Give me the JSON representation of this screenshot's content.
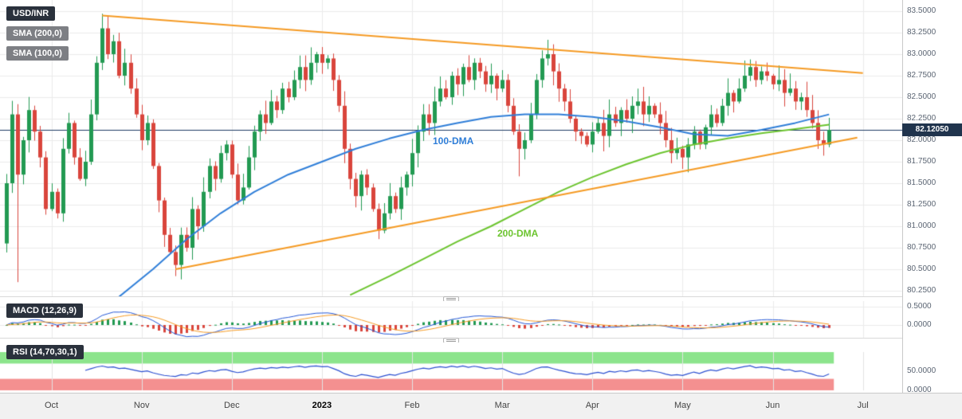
{
  "header": {
    "symbol": "USD/INR",
    "sma200_label": "SMA (200,0)",
    "sma100_label": "SMA (100,0)"
  },
  "overlays": {
    "dma100_label": "100-DMA",
    "dma200_label": "200-DMA",
    "price_tag": "82.12050"
  },
  "indicators": {
    "macd_label": "MACD (12,26,9)",
    "rsi_label": "RSI (14,70,30,1)"
  },
  "axes": {
    "price_ticks": [
      "83.5000",
      "83.2500",
      "83.0000",
      "82.7500",
      "82.5000",
      "82.2500",
      "82.0000",
      "81.7500",
      "81.5000",
      "81.2500",
      "81.0000",
      "80.7500",
      "80.5000",
      "80.2500"
    ],
    "macd_ticks": [
      "0.5000",
      "0.0000"
    ],
    "rsi_ticks": [
      "50.0000",
      "0.0000"
    ]
  },
  "chart_data": {
    "type": "candlestick",
    "symbol": "USD/INR",
    "price_axis": {
      "min": 80.19,
      "max": 83.63,
      "tick_step": 0.25
    },
    "x_axis": {
      "months": [
        {
          "label": "Oct",
          "i": 8
        },
        {
          "label": "Nov",
          "i": 24
        },
        {
          "label": "Dec",
          "i": 40
        },
        {
          "label": "2023",
          "i": 56
        },
        {
          "label": "Feb",
          "i": 72
        },
        {
          "label": "Mar",
          "i": 88
        },
        {
          "label": "Apr",
          "i": 104
        },
        {
          "label": "May",
          "i": 120
        },
        {
          "label": "Jun",
          "i": 136
        },
        {
          "label": "Jul",
          "i": 152
        }
      ]
    },
    "open_first": 80.8,
    "closes": [
      81.5,
      82.3,
      81.6,
      82.0,
      82.35,
      82.1,
      81.8,
      81.2,
      81.4,
      81.15,
      81.9,
      82.2,
      81.8,
      81.55,
      81.75,
      82.3,
      82.9,
      83.3,
      83.0,
      83.15,
      82.75,
      82.9,
      82.6,
      82.3,
      82.0,
      82.2,
      81.7,
      81.3,
      80.9,
      80.7,
      80.55,
      80.9,
      80.75,
      81.2,
      81.0,
      81.4,
      81.7,
      81.55,
      81.85,
      81.95,
      81.6,
      81.3,
      81.45,
      81.8,
      82.1,
      82.3,
      82.2,
      82.45,
      82.35,
      82.6,
      82.5,
      82.7,
      82.85,
      82.7,
      82.9,
      83.0,
      82.9,
      82.95,
      82.7,
      82.4,
      81.9,
      81.55,
      81.35,
      81.6,
      81.45,
      81.2,
      80.95,
      81.15,
      81.35,
      81.2,
      81.45,
      81.6,
      81.85,
      82.1,
      82.3,
      82.2,
      82.45,
      82.6,
      82.5,
      82.75,
      82.65,
      82.85,
      82.7,
      82.9,
      82.8,
      82.65,
      82.75,
      82.6,
      82.7,
      82.4,
      82.1,
      81.9,
      82.0,
      82.3,
      82.7,
      82.95,
      83.0,
      82.8,
      82.6,
      82.45,
      82.25,
      82.1,
      82.05,
      81.95,
      82.1,
      82.2,
      82.05,
      82.3,
      82.2,
      82.35,
      82.25,
      82.4,
      82.45,
      82.3,
      82.4,
      82.3,
      82.2,
      82.0,
      81.85,
      81.9,
      81.8,
      81.95,
      82.1,
      81.95,
      82.15,
      82.3,
      82.2,
      82.4,
      82.55,
      82.45,
      82.6,
      82.75,
      82.85,
      82.7,
      82.8,
      82.75,
      82.65,
      82.7,
      82.55,
      82.6,
      82.45,
      82.5,
      82.35,
      82.2,
      82.0,
      81.95,
      82.12
    ],
    "wick_overrides": {
      "2": {
        "low": 80.35
      },
      "17": {
        "high": 83.47
      },
      "30": {
        "low": 80.42
      },
      "66": {
        "low": 80.85
      },
      "91": {
        "low": 81.58
      },
      "145": {
        "low": 81.82
      }
    },
    "sma100": [
      [
        20,
        80.18
      ],
      [
        26,
        80.5
      ],
      [
        32,
        80.85
      ],
      [
        38,
        81.15
      ],
      [
        44,
        81.4
      ],
      [
        50,
        81.6
      ],
      [
        56,
        81.75
      ],
      [
        62,
        81.9
      ],
      [
        68,
        82.02
      ],
      [
        74,
        82.12
      ],
      [
        80,
        82.2
      ],
      [
        86,
        82.27
      ],
      [
        92,
        82.3
      ],
      [
        98,
        82.3
      ],
      [
        104,
        82.27
      ],
      [
        110,
        82.22
      ],
      [
        116,
        82.15
      ],
      [
        122,
        82.07
      ],
      [
        128,
        82.05
      ],
      [
        134,
        82.12
      ],
      [
        140,
        82.2
      ],
      [
        146,
        82.3
      ]
    ],
    "sma200": [
      [
        61,
        80.2
      ],
      [
        68,
        80.42
      ],
      [
        74,
        80.62
      ],
      [
        80,
        80.82
      ],
      [
        86,
        81.0
      ],
      [
        92,
        81.2
      ],
      [
        98,
        81.4
      ],
      [
        104,
        81.57
      ],
      [
        110,
        81.72
      ],
      [
        116,
        81.85
      ],
      [
        122,
        81.95
      ],
      [
        128,
        82.02
      ],
      [
        134,
        82.08
      ],
      [
        140,
        82.13
      ],
      [
        146,
        82.18
      ]
    ],
    "trendline_upper": [
      [
        17,
        83.45
      ],
      [
        152,
        82.78
      ]
    ],
    "trendline_lower": [
      [
        30,
        80.5
      ],
      [
        151,
        82.03
      ]
    ],
    "last_price_line": 82.1205,
    "macd": {
      "fast": 12,
      "slow": 26,
      "signal": 9
    },
    "rsi": {
      "period": 14,
      "upper": 70,
      "lower": 30
    },
    "colors": {
      "up": "#229a52",
      "down": "#d9453c",
      "sma100": "#2f7ed8",
      "sma200": "#6cc42f",
      "trendline": "#f59a23",
      "price_line": "#1d3b63",
      "macd_line": "#2457d6",
      "macd_signal": "#f59a23",
      "rsi_line": "#2b4fd0",
      "rsi_upper_band": "#8ce48c",
      "rsi_lower_band": "#f49090"
    }
  }
}
